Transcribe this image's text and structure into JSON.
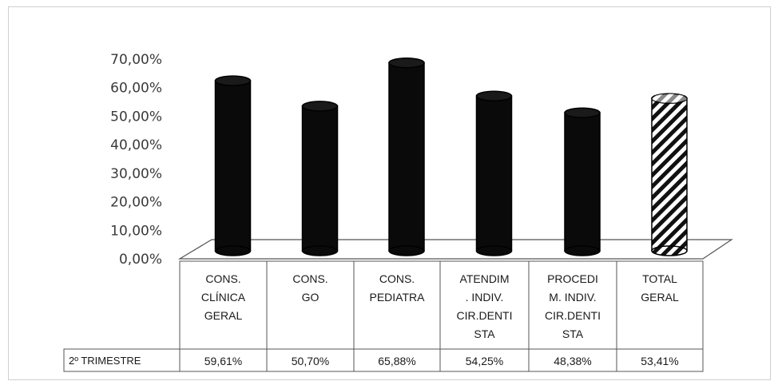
{
  "chart_data": {
    "type": "bar",
    "categories": [
      [
        "CONS.",
        "CLÍNICA",
        "GERAL"
      ],
      [
        "CONS.",
        "GO"
      ],
      [
        "CONS.",
        "PEDIATRA"
      ],
      [
        "ATENDIM",
        ". INDIV.",
        "CIR.DENTI",
        "STA"
      ],
      [
        "PROCEDI",
        "M. INDIV.",
        "CIR.DENTI",
        "STA"
      ],
      [
        "TOTAL",
        "GERAL"
      ]
    ],
    "series": [
      {
        "name": "2º TRIMESTRE",
        "values": [
          59.61,
          50.7,
          65.88,
          54.25,
          48.38,
          53.41
        ],
        "labels": [
          "59,61%",
          "50,70%",
          "65,88%",
          "54,25%",
          "48,38%",
          "53,41%"
        ]
      }
    ],
    "highlight_last": true,
    "y_ticks": [
      "0,00%",
      "10,00%",
      "20,00%",
      "30,00%",
      "40,00%",
      "50,00%",
      "60,00%",
      "70,00%"
    ],
    "ylim": [
      0,
      70
    ],
    "grid": false,
    "legend": "data table",
    "colors": {
      "bar": "#0a0a0a",
      "hatch": "#111111",
      "axis": "#555555"
    }
  }
}
